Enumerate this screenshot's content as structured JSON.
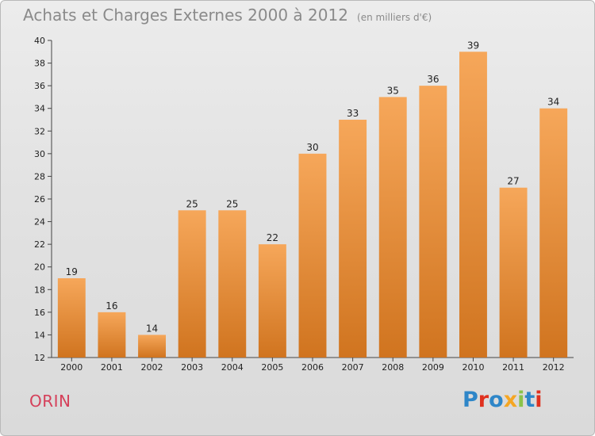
{
  "header": {
    "title": "Achats et Charges Externes 2000 à 2012",
    "unit": "(en milliers d'€)"
  },
  "footer": {
    "commune": "ORIN",
    "brand": "Proxiti",
    "brand_colors": [
      "#2e86c8",
      "#e0301e",
      "#2e86c8",
      "#f5a623",
      "#8bc34a",
      "#2e86c8",
      "#e0301e"
    ]
  },
  "colors": {
    "bar_top": "#f6a75a",
    "bar_bottom": "#d0741f",
    "commune": "#d5405a",
    "title": "#8a8a8a"
  },
  "chart_data": {
    "type": "bar",
    "title": "Achats et Charges Externes 2000 à 2012",
    "subtitle": "(en milliers d'€)",
    "categories": [
      "2000",
      "2001",
      "2002",
      "2003",
      "2004",
      "2005",
      "2006",
      "2007",
      "2008",
      "2009",
      "2010",
      "2011",
      "2012"
    ],
    "values": [
      19,
      16,
      14,
      25,
      25,
      22,
      30,
      33,
      35,
      36,
      39,
      27,
      34
    ],
    "ylim": [
      12,
      40
    ],
    "yticks": [
      12,
      14,
      16,
      18,
      20,
      22,
      24,
      26,
      28,
      30,
      32,
      34,
      36,
      38,
      40
    ],
    "grid": false,
    "xlabel": "",
    "ylabel": ""
  }
}
